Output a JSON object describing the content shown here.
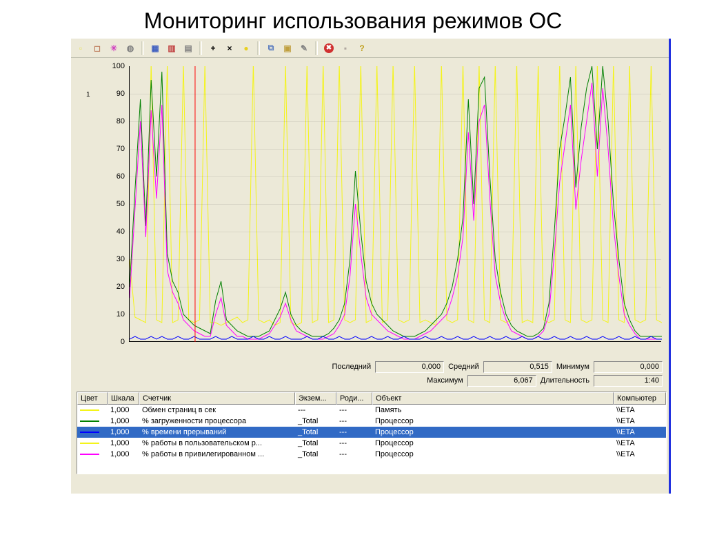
{
  "title": "Мониторинг использования режимов ОС",
  "colors": {
    "window_bg": "#ece9d8",
    "border_blue": "#2030e0",
    "selection_bg": "#316ac5",
    "selection_fg": "#ffffff",
    "axis": "#000000",
    "marker_line": "#ff0000"
  },
  "toolbar": [
    {
      "name": "new-counter-set-icon",
      "glyph": "▫",
      "color": "#e8e060"
    },
    {
      "name": "clear-display-icon",
      "glyph": "◻",
      "color": "#c08060"
    },
    {
      "name": "view-graph-icon",
      "glyph": "✳",
      "color": "#d040c0"
    },
    {
      "name": "view-histogram-icon",
      "glyph": "◍",
      "color": "#808080"
    },
    {
      "sep": true
    },
    {
      "name": "view-report-icon",
      "glyph": "▦",
      "color": "#4060c0"
    },
    {
      "name": "view-log-icon",
      "glyph": "▥",
      "color": "#c04040"
    },
    {
      "name": "properties-icon",
      "glyph": "▤",
      "color": "#808080"
    },
    {
      "sep": true
    },
    {
      "name": "add-counter-icon",
      "glyph": "+",
      "color": "#000000"
    },
    {
      "name": "delete-counter-icon",
      "glyph": "×",
      "color": "#000000"
    },
    {
      "name": "highlight-icon",
      "glyph": "●",
      "color": "#e8d020"
    },
    {
      "sep": true
    },
    {
      "name": "copy-icon",
      "glyph": "⧉",
      "color": "#6080c0"
    },
    {
      "name": "paste-icon",
      "glyph": "▣",
      "color": "#c0a040"
    },
    {
      "name": "settings-icon",
      "glyph": "✎",
      "color": "#808080"
    },
    {
      "sep": true
    },
    {
      "name": "stop-icon",
      "glyph": "✖",
      "color": "#ffffff",
      "bg": "#d03030"
    },
    {
      "name": "snapshot-icon",
      "glyph": "▪",
      "color": "#b0a8a0"
    },
    {
      "name": "help-icon",
      "glyph": "?",
      "color": "#c0a020"
    }
  ],
  "chart": {
    "type": "line",
    "ylim": [
      0,
      100
    ],
    "ytick_step": 10,
    "background_color": "#ece9d8",
    "axis_color": "#000000",
    "marker_x": 0.123,
    "left_marker": "1",
    "series": [
      {
        "name": "yellow",
        "color": "#f4f41a",
        "width": 1,
        "values": [
          30,
          9,
          8,
          7,
          120,
          8,
          7,
          120,
          7,
          8,
          120,
          8,
          7,
          8,
          120,
          7,
          7,
          6,
          7,
          8,
          9,
          7,
          8,
          120,
          8,
          7,
          8,
          6,
          7,
          120,
          7,
          6,
          7,
          120,
          7,
          8,
          120,
          7,
          8,
          120,
          8,
          7,
          8,
          120,
          7,
          8,
          120,
          7,
          8,
          120,
          8,
          7,
          8,
          120,
          7,
          8,
          7,
          6,
          120,
          8,
          7,
          8,
          120,
          8,
          7,
          120,
          8,
          7,
          120,
          8,
          7,
          8,
          120,
          7,
          8,
          7,
          120,
          8,
          7,
          8,
          120,
          8,
          7,
          120,
          8,
          7,
          8,
          120,
          8,
          7,
          120,
          8,
          7,
          120,
          8,
          7,
          8,
          120,
          8,
          7
        ]
      },
      {
        "name": "green",
        "color": "#008000",
        "width": 1,
        "values": [
          20,
          55,
          88,
          42,
          95,
          60,
          98,
          32,
          22,
          18,
          10,
          8,
          6,
          5,
          4,
          3,
          15,
          22,
          8,
          6,
          4,
          3,
          2,
          2,
          2,
          3,
          4,
          8,
          12,
          18,
          10,
          6,
          4,
          3,
          2,
          2,
          2,
          3,
          5,
          8,
          14,
          30,
          62,
          40,
          22,
          14,
          10,
          8,
          6,
          4,
          3,
          2,
          2,
          2,
          3,
          4,
          6,
          8,
          10,
          14,
          20,
          30,
          45,
          88,
          50,
          92,
          96,
          60,
          30,
          18,
          10,
          6,
          4,
          3,
          2,
          2,
          3,
          5,
          14,
          40,
          70,
          82,
          96,
          56,
          78,
          92,
          100,
          70,
          100,
          80,
          50,
          30,
          14,
          8,
          4,
          2,
          2,
          2,
          2,
          2
        ]
      },
      {
        "name": "magenta",
        "color": "#ff00ff",
        "width": 1,
        "values": [
          16,
          48,
          80,
          38,
          84,
          52,
          86,
          26,
          18,
          14,
          8,
          6,
          4,
          3,
          2,
          2,
          10,
          16,
          6,
          4,
          2,
          2,
          1,
          1,
          1,
          2,
          3,
          6,
          9,
          14,
          8,
          4,
          3,
          2,
          1,
          1,
          1,
          2,
          3,
          6,
          10,
          24,
          50,
          32,
          16,
          10,
          8,
          6,
          4,
          3,
          2,
          1,
          1,
          1,
          2,
          3,
          4,
          6,
          8,
          10,
          16,
          24,
          38,
          76,
          44,
          80,
          86,
          52,
          24,
          14,
          8,
          4,
          3,
          2,
          1,
          1,
          2,
          4,
          10,
          32,
          58,
          72,
          86,
          48,
          66,
          80,
          94,
          60,
          92,
          70,
          42,
          24,
          10,
          6,
          3,
          1,
          1,
          1,
          1,
          1
        ]
      },
      {
        "name": "blue",
        "color": "#0000ff",
        "width": 1,
        "values": [
          1,
          2,
          1,
          1,
          2,
          1,
          2,
          1,
          1,
          2,
          1,
          1,
          2,
          1,
          1,
          1,
          2,
          1,
          1,
          2,
          1,
          1,
          1,
          2,
          1,
          1,
          2,
          1,
          1,
          2,
          1,
          1,
          1,
          2,
          1,
          1,
          2,
          1,
          1,
          2,
          1,
          1,
          2,
          1,
          1,
          2,
          1,
          1,
          2,
          1,
          1,
          2,
          1,
          1,
          1,
          2,
          1,
          1,
          2,
          1,
          1,
          2,
          1,
          1,
          2,
          1,
          1,
          2,
          1,
          1,
          2,
          1,
          1,
          2,
          1,
          1,
          2,
          1,
          1,
          2,
          1,
          1,
          2,
          1,
          1,
          2,
          1,
          1,
          2,
          1,
          1,
          2,
          1,
          1,
          2,
          1,
          1,
          2,
          1,
          1
        ]
      }
    ]
  },
  "stats": {
    "last_label": "Последний",
    "last_value": "0,000",
    "avg_label": "Средний",
    "avg_value": "0,515",
    "min_label": "Минимум",
    "min_value": "0,000",
    "max_label": "Максимум",
    "max_value": "6,067",
    "dur_label": "Длительность",
    "dur_value": "1:40"
  },
  "counter_table": {
    "columns": {
      "color": "Цвет",
      "scale": "Шкала",
      "counter": "Счетчик",
      "instance": "Экзем...",
      "parent": "Роди...",
      "object": "Объект",
      "computer": "Компьютер"
    },
    "rows": [
      {
        "color": "#f4f41a",
        "scale": "1,000",
        "counter": "Обмен страниц в сек",
        "instance": "---",
        "parent": "---",
        "object": "Память",
        "computer": "\\\\ETA",
        "selected": false
      },
      {
        "color": "#008000",
        "scale": "1,000",
        "counter": "% загруженности процессора",
        "instance": "_Total",
        "parent": "---",
        "object": "Процессор",
        "computer": "\\\\ETA",
        "selected": false
      },
      {
        "color": "#0000ff",
        "scale": "1,000",
        "counter": "% времени прерываний",
        "instance": "_Total",
        "parent": "---",
        "object": "Процессор",
        "computer": "\\\\ETA",
        "selected": true
      },
      {
        "color": "#f4f41a",
        "scale": "1,000",
        "counter": "% работы в пользовательском р...",
        "instance": "_Total",
        "parent": "---",
        "object": "Процессор",
        "computer": "\\\\ETA",
        "selected": false
      },
      {
        "color": "#ff00ff",
        "scale": "1,000",
        "counter": "% работы в привилегированном ...",
        "instance": "_Total",
        "parent": "---",
        "object": "Процессор",
        "computer": "\\\\ETA",
        "selected": false
      }
    ]
  }
}
